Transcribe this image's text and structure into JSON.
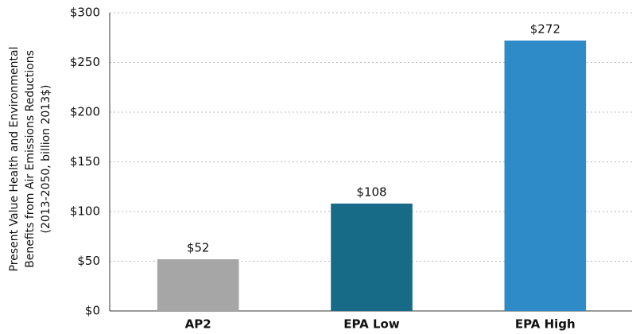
{
  "chart_data": {
    "type": "bar",
    "ylabel": [
      "Present Value Health and Environmental",
      "Benefits from Air Emissions Reductions",
      "(2013-2050, billion 2013$)"
    ],
    "categories": [
      "AP2",
      "EPA Low",
      "EPA High"
    ],
    "values": [
      52,
      108,
      272
    ],
    "value_labels": [
      "$52",
      "$108",
      "$272"
    ],
    "colors": [
      "#a6a6a6",
      "#176b87",
      "#2e8bc8"
    ],
    "ylim": [
      0,
      300
    ],
    "yticks": [
      {
        "value": 0,
        "label": "$0"
      },
      {
        "value": 50,
        "label": "$50"
      },
      {
        "value": 100,
        "label": "$100"
      },
      {
        "value": 150,
        "label": "$150"
      },
      {
        "value": 200,
        "label": "$200"
      },
      {
        "value": 250,
        "label": "$250"
      },
      {
        "value": 300,
        "label": "$300"
      }
    ],
    "grid": true
  }
}
